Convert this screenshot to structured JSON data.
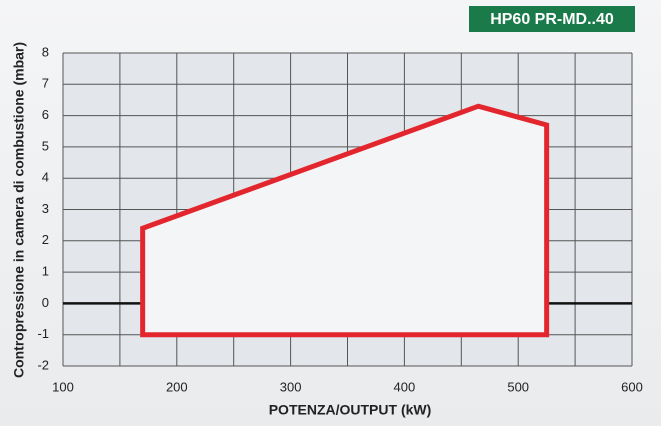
{
  "chart_data": {
    "type": "polygon",
    "badge": "HP60 PR-MD..40",
    "xlabel": "POTENZA/OUTPUT (kW)",
    "ylabel": "Contropressione in camera di combustione (mbar)",
    "xlim": [
      100,
      600
    ],
    "xticks": [
      100,
      200,
      300,
      400,
      500,
      600
    ],
    "x_minor_ticks": [
      150,
      250,
      350,
      450,
      550
    ],
    "ylim": [
      -2,
      8
    ],
    "yticks": [
      -2,
      -1,
      0,
      1,
      2,
      3,
      4,
      5,
      6,
      7,
      8
    ],
    "grid": true,
    "series": [
      {
        "color": "#e3262d",
        "x": [
          170,
          170,
          465,
          525,
          525
        ],
        "y": [
          -1,
          2.4,
          6.3,
          5.7,
          -1
        ]
      }
    ]
  }
}
